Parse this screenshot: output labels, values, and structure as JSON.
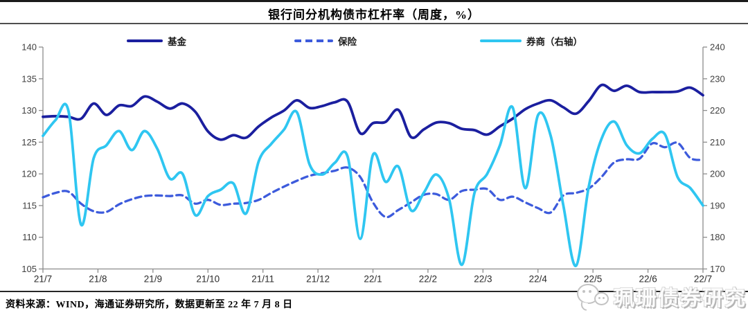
{
  "header": {
    "title": "银行间分机构债市杠杆率（周度，%）"
  },
  "legend": {
    "items": [
      {
        "label": "基金"
      },
      {
        "label": "保险"
      },
      {
        "label": "券商（右轴）"
      }
    ]
  },
  "chart_data": {
    "type": "line",
    "title": "银行间分机构债市杠杆率（周度，%）",
    "grid": false,
    "legend_position": "top",
    "x_ticks": [
      "21/7",
      "21/8",
      "21/9",
      "21/10",
      "21/11",
      "21/12",
      "22/1",
      "22/2",
      "22/3",
      "22/4",
      "22/5",
      "22/6",
      "22/7"
    ],
    "left_axis": {
      "min": 105,
      "max": 140,
      "ticks": [
        140,
        135,
        130,
        125,
        120,
        115,
        110,
        105
      ]
    },
    "right_axis": {
      "min": 170,
      "max": 240,
      "ticks": [
        240,
        230,
        220,
        210,
        200,
        190,
        180,
        170
      ]
    },
    "axis_color": "#8c8c8c",
    "tick_label_color": "#3f3f3f",
    "series": [
      {
        "name": "基金",
        "key": "fund",
        "axis": "left",
        "color": "#1B1F9F",
        "width": 3.8,
        "dash": null,
        "values": [
          129.0,
          129.1,
          129.0,
          128.7,
          131.1,
          129.3,
          130.8,
          130.7,
          132.2,
          131.4,
          130.3,
          131.1,
          129.8,
          126.7,
          125.4,
          126.1,
          125.7,
          127.5,
          128.9,
          130.0,
          131.6,
          130.4,
          130.7,
          131.3,
          131.4,
          126.4,
          128.0,
          128.2,
          130.1,
          125.8,
          127.0,
          128.1,
          128.0,
          127.1,
          126.9,
          126.2,
          127.5,
          128.7,
          130.2,
          131.1,
          131.6,
          130.5,
          129.5,
          131.5,
          134.0,
          133.1,
          133.9,
          132.9,
          132.9,
          132.9,
          133.0,
          133.6,
          132.4
        ]
      },
      {
        "name": "保险",
        "key": "insurance",
        "axis": "left",
        "color": "#3D5BDC",
        "width": 3.3,
        "dash": "9 6",
        "values": [
          116.3,
          117.0,
          117.2,
          115.3,
          114.1,
          114.0,
          115.2,
          116.0,
          116.5,
          116.6,
          116.5,
          116.6,
          115.3,
          115.9,
          115.1,
          115.3,
          115.4,
          115.9,
          117.0,
          118.0,
          118.9,
          119.7,
          120.1,
          120.5,
          121.0,
          119.5,
          115.5,
          113.2,
          114.3,
          115.5,
          116.7,
          116.8,
          115.9,
          117.3,
          117.5,
          117.6,
          115.9,
          116.4,
          115.5,
          114.6,
          113.9,
          116.6,
          117.0,
          117.7,
          119.5,
          121.8,
          122.3,
          122.4,
          124.8,
          124.2,
          124.9,
          122.5,
          122.2
        ]
      },
      {
        "name": "券商（右轴）",
        "key": "broker",
        "axis": "right",
        "color": "#2FC6F1",
        "width": 3.8,
        "dash": null,
        "values": [
          212,
          217,
          220,
          184,
          205,
          209,
          213.5,
          207.5,
          213.5,
          208,
          198.5,
          200,
          187,
          193,
          195,
          197,
          187.5,
          204,
          209.5,
          214,
          219.5,
          203,
          199.8,
          203.5,
          205.5,
          179.5,
          206,
          197.5,
          202.3,
          188.5,
          194,
          199.8,
          192,
          171.3,
          194,
          200,
          209,
          221,
          195.5,
          218.5,
          212,
          190,
          171,
          196,
          211,
          216.5,
          209,
          206.5,
          211,
          212.5,
          199,
          195.5,
          190
        ]
      }
    ]
  },
  "footer": {
    "source": "资料来源：WIND，海通证券研究所，数据更新至 22 年 7 月 8 日"
  },
  "watermark": {
    "icon": "wechat-icon",
    "text": "珮珊债券研究"
  }
}
